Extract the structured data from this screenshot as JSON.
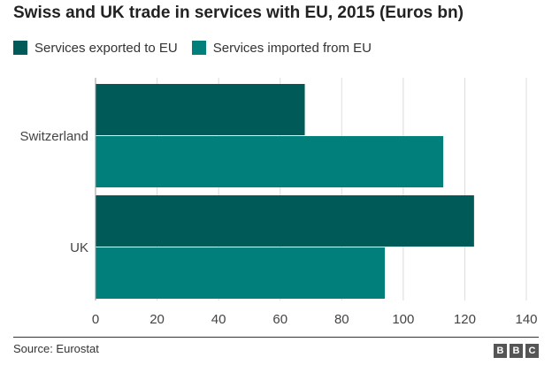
{
  "chart_data": {
    "type": "bar",
    "orientation": "horizontal",
    "title": "Swiss and UK trade in services with EU, 2015 (Euros bn)",
    "categories": [
      "Switzerland",
      "UK"
    ],
    "series": [
      {
        "name": "Services exported to EU",
        "values": [
          68,
          123
        ],
        "color": "#005a57"
      },
      {
        "name": "Services imported from EU",
        "values": [
          113,
          94
        ],
        "color": "#007f7b"
      }
    ],
    "xlim": [
      0,
      140
    ],
    "xticks": [
      0,
      20,
      40,
      60,
      80,
      100,
      120,
      140
    ],
    "grid": true,
    "legend_position": "top-left"
  },
  "footer": {
    "source": "Source: Eurostat",
    "logo_letters": [
      "B",
      "B",
      "C"
    ]
  }
}
